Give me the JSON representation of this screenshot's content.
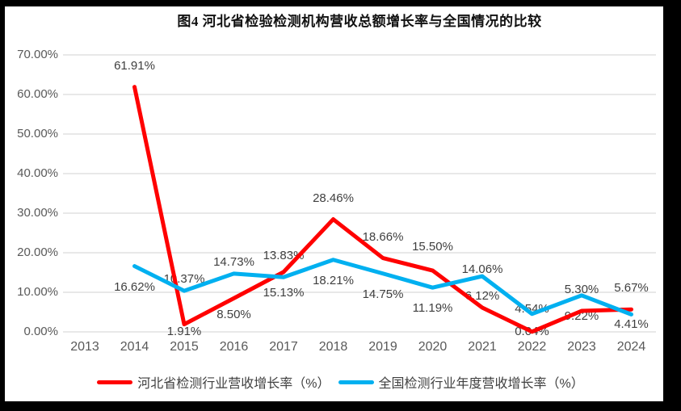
{
  "chart_data": {
    "type": "line",
    "title": "图4 河北省检验检测机构营收总额增长率与全国情况的比较",
    "categories": [
      "2013",
      "2014",
      "2015",
      "2016",
      "2017",
      "2018",
      "2019",
      "2020",
      "2021",
      "2022",
      "2023",
      "2024"
    ],
    "y_axis": {
      "min": 0,
      "max": 70,
      "grid": true,
      "ticks": [
        {
          "label": "70.00%",
          "value": 70
        },
        {
          "label": "60.00%",
          "value": 60
        },
        {
          "label": "50.00%",
          "value": 50
        },
        {
          "label": "40.00%",
          "value": 40
        },
        {
          "label": "30.00%",
          "value": 30
        },
        {
          "label": "20.00%",
          "value": 20
        },
        {
          "label": "10.00%",
          "value": 10
        },
        {
          "label": "0.00%",
          "value": 0
        }
      ]
    },
    "series": [
      {
        "name": "河北省检测行业营收增长率（%）",
        "color": "#FF0000",
        "values": [
          null,
          61.91,
          1.91,
          8.5,
          15.13,
          28.46,
          18.66,
          15.5,
          6.12,
          0.04,
          5.3,
          5.67
        ],
        "labels": [
          null,
          "61.91%",
          "1.91%",
          "8.50%",
          "15.13%",
          "28.46%",
          "18.66%",
          "15.50%",
          "6.12%",
          "0.04%",
          "5.30%",
          "5.67%"
        ],
        "label_placements": [
          null,
          "above",
          "below",
          "below",
          "below",
          "above",
          "above",
          "above",
          "above",
          "center",
          "above",
          "above"
        ],
        "label_dy": [
          0,
          0,
          -17,
          -5,
          0,
          0,
          0,
          -3,
          12,
          0,
          0,
          0
        ]
      },
      {
        "name": "全国检测行业年度营收增长率（%）",
        "color": "#00B0F0",
        "values": [
          null,
          16.62,
          10.37,
          14.73,
          13.83,
          18.21,
          14.75,
          11.19,
          14.06,
          4.54,
          9.22,
          4.41
        ],
        "labels": [
          null,
          "16.62%",
          "10.37%",
          "14.73%",
          "13.83%",
          "18.21%",
          "14.75%",
          "11.19%",
          "14.06%",
          "4.54%",
          "9.22%",
          "4.41%"
        ],
        "label_placements": [
          null,
          "below",
          "above",
          "above",
          "above",
          "below",
          "below",
          "below",
          "above",
          "above",
          "below",
          "below"
        ],
        "label_dy": [
          0,
          0,
          12,
          12,
          0,
          0,
          0,
          0,
          18,
          20,
          0,
          -13
        ]
      }
    ],
    "legend_position": "bottom",
    "colors": {
      "gridline": "#D9D9D9",
      "axis_text": "#595959",
      "data_label_text": "#3F3F3F",
      "frame": "#000000",
      "background": "#FFFFFF"
    }
  }
}
